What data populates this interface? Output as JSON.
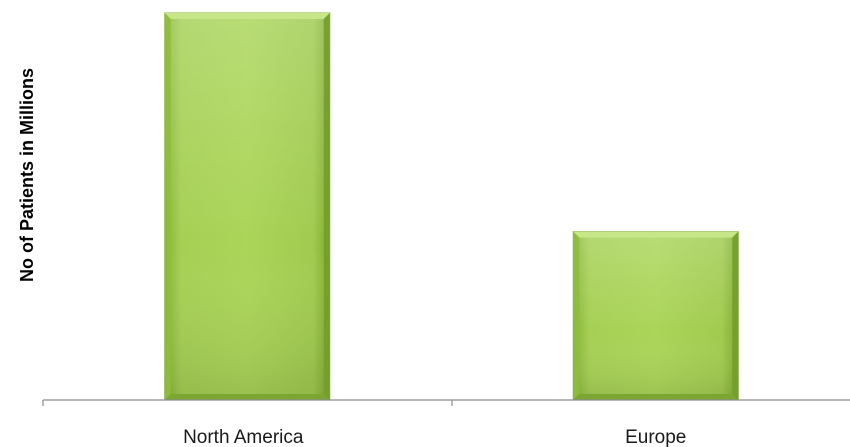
{
  "chart_data": {
    "type": "bar",
    "title": "",
    "xlabel": "",
    "ylabel": "No of Patients in Millions",
    "categories": [
      "North America",
      "Europe"
    ],
    "values": [
      100,
      43.5
    ],
    "ylim": [
      0,
      100
    ],
    "grid": false,
    "legend": "none",
    "colors": {
      "bar_light": "#b5d96a",
      "bar_mid": "#9bc94a",
      "bar_dark": "#6f9a28",
      "axis": "#8c8c8c"
    }
  }
}
